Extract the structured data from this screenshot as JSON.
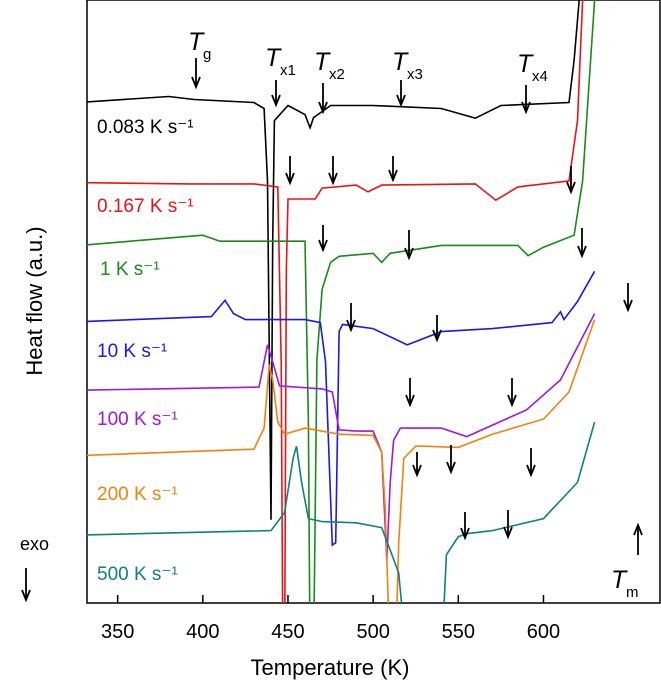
{
  "chart_data": {
    "type": "line",
    "xlabel": "Temperature (K)",
    "ylabel": "Heat flow (a.u.)",
    "xlim": [
      332,
      669
    ],
    "xticks": [
      350,
      400,
      450,
      500,
      550,
      600
    ],
    "ylim": [
      0,
      100
    ],
    "series": [
      {
        "name": "0.083 K s⁻¹",
        "color": "#000000",
        "x": [
          332,
          380,
          395,
          430,
          436,
          438,
          440,
          441,
          442,
          450,
          460,
          463,
          465,
          475,
          500,
          540,
          560,
          575,
          615,
          618,
          621
        ],
        "values": [
          83.1,
          84,
          83.5,
          83,
          82,
          70,
          13.8,
          60,
          80,
          82.5,
          81,
          78.8,
          80.5,
          82.5,
          82.5,
          82,
          80.4,
          82.5,
          83,
          90,
          100
        ]
      },
      {
        "name": "0.167 K s⁻¹",
        "color": "#e8141a",
        "x": [
          332,
          392,
          430,
          444,
          446,
          447,
          448,
          449,
          450,
          466,
          470,
          490,
          497,
          505,
          560,
          572,
          585,
          615,
          620,
          623
        ],
        "values": [
          69.7,
          69.5,
          69.5,
          69,
          40,
          -10,
          -10,
          55,
          67,
          67,
          68.8,
          69.3,
          68.2,
          69.3,
          69.5,
          66.8,
          69,
          70,
          80,
          100
        ]
      },
      {
        "name": "1 K s⁻¹",
        "color": "#1a8a1a",
        "x": [
          332,
          400,
          410,
          460,
          462,
          463,
          465,
          467,
          470,
          475,
          480,
          500,
          505,
          510,
          540,
          585,
          591,
          600,
          618,
          623,
          630
        ],
        "values": [
          59.4,
          61,
          60,
          60,
          30,
          -10,
          -10,
          40.3,
          52,
          56.5,
          57.5,
          58,
          56.5,
          58,
          59.3,
          59.3,
          57.6,
          59,
          61,
          70,
          100
        ]
      },
      {
        "name": "10 K s⁻¹",
        "color": "#1a1ae0",
        "x": [
          332,
          405,
          413,
          418,
          425,
          460,
          469,
          472,
          476,
          478,
          480,
          482,
          500,
          520,
          540,
          570,
          605,
          610,
          612,
          620,
          630
        ],
        "values": [
          46.7,
          47.5,
          50.2,
          48,
          47,
          47,
          46.5,
          40,
          9.6,
          10,
          45,
          46.2,
          45.5,
          42.8,
          45,
          45.5,
          46.5,
          48.3,
          47,
          50,
          55
        ]
      },
      {
        "name": "100 K s⁻¹",
        "color": "#9a1ae0",
        "x": [
          332,
          433,
          438,
          441,
          445,
          470,
          476,
          480,
          490,
          500,
          505,
          508,
          510,
          512,
          516,
          540,
          555,
          570,
          590,
          610,
          630
        ],
        "values": [
          35.3,
          35.8,
          42.8,
          40,
          36,
          35.5,
          35,
          28.7,
          28.5,
          28.5,
          25,
          7,
          20,
          27,
          29,
          29,
          27.6,
          29.5,
          32,
          37,
          48
        ]
      },
      {
        "name": "200 K s⁻¹",
        "color": "#f0820f",
        "x": [
          332,
          430,
          436,
          439,
          441,
          444,
          448,
          460,
          480,
          500,
          505,
          507,
          510,
          513,
          515,
          518,
          525,
          530,
          550,
          570,
          600,
          615,
          630
        ],
        "values": [
          24.5,
          25.5,
          29,
          39.5,
          37,
          30,
          28,
          29,
          28,
          27.8,
          25,
          16,
          -10,
          -10,
          10,
          24,
          26,
          26,
          25.8,
          28,
          30.5,
          35,
          47
        ]
      },
      {
        "name": "500 K s⁻¹",
        "color": "#118080",
        "x": [
          332,
          440,
          448,
          453,
          455,
          458,
          462,
          470,
          490,
          505,
          515,
          520,
          540,
          543,
          550,
          555,
          570,
          600,
          620,
          630
        ],
        "values": [
          11.3,
          12,
          15,
          24,
          26,
          20,
          14,
          13.5,
          13.3,
          12.5,
          5,
          -10,
          -10,
          8,
          11,
          11.5,
          12,
          14,
          20,
          30
        ]
      }
    ],
    "annotations": [
      {
        "text": "T",
        "sub": "g"
      },
      {
        "text": "T",
        "sub": "x1"
      },
      {
        "text": "T",
        "sub": "x2"
      },
      {
        "text": "T",
        "sub": "x3"
      },
      {
        "text": "T",
        "sub": "x4"
      },
      {
        "text": "T",
        "sub": "m"
      },
      {
        "text": "exo"
      }
    ]
  }
}
